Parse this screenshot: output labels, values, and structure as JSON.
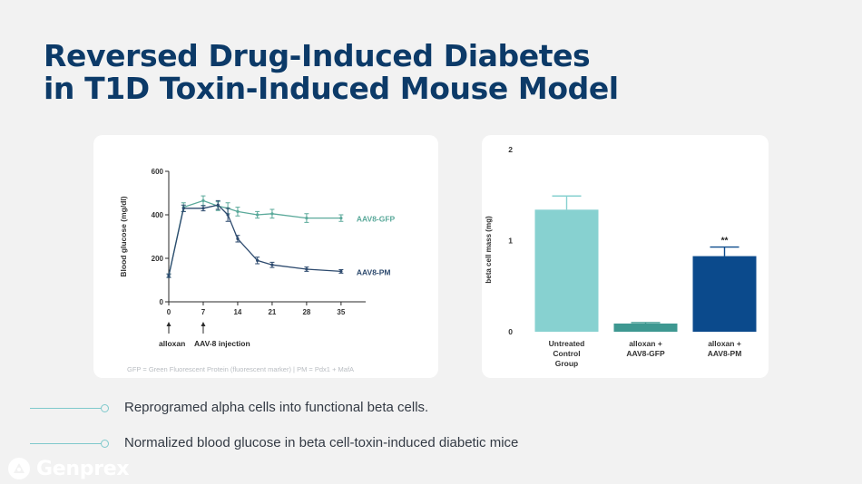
{
  "slide": {
    "title_line1": "Reversed Drug-Induced Diabetes",
    "title_line2": "in T1D Toxin-Induced Mouse Model",
    "footnote": "GFP = Green Fluorescent Protein (fluorescent marker) | PM = Pdx1 + MafA",
    "bullets": [
      "Reprogramed alpha cells into functional beta cells.",
      "Normalized blood glucose in beta cell-toxin-induced diabetic mice"
    ],
    "brand": "Genprex"
  },
  "colors": {
    "title": "#0c3a68",
    "gfp_line": "#5aa99a",
    "pm_line": "#2d4a6e",
    "bar_control": "#87d1d0",
    "bar_gfp": "#3e9891",
    "bar_pm": "#0b4a8c"
  },
  "chart_data": [
    {
      "type": "line",
      "title": "",
      "xlabel": "",
      "ylabel": "Blood glucose (mg/dl)",
      "xlim": [
        0,
        40
      ],
      "ylim": [
        0,
        600
      ],
      "xticks": [
        0,
        7,
        14,
        21,
        28,
        35
      ],
      "yticks": [
        0,
        200,
        400,
        600
      ],
      "series": [
        {
          "name": "AAV8-GFP",
          "color": "#5aa99a",
          "x": [
            0,
            3,
            7,
            10,
            12,
            14,
            18,
            21,
            28,
            35
          ],
          "y": [
            120,
            435,
            465,
            440,
            430,
            415,
            400,
            405,
            385,
            385
          ],
          "err": [
            8,
            20,
            22,
            20,
            25,
            20,
            15,
            20,
            20,
            15
          ]
        },
        {
          "name": "AAV8-PM",
          "color": "#2d4a6e",
          "x": [
            0,
            3,
            7,
            10,
            12,
            14,
            18,
            21,
            28,
            35
          ],
          "y": [
            120,
            430,
            430,
            445,
            400,
            290,
            190,
            170,
            150,
            140
          ],
          "err": [
            8,
            15,
            12,
            20,
            30,
            15,
            15,
            12,
            10,
            8
          ]
        }
      ],
      "annotations": [
        {
          "label": "alloxan",
          "x": 0
        },
        {
          "label": "AAV-8 injection",
          "x": 7
        }
      ]
    },
    {
      "type": "bar",
      "title": "",
      "xlabel": "",
      "ylabel": "beta cell mass (mg)",
      "ylim": [
        0,
        2
      ],
      "yticks": [
        0,
        1,
        2
      ],
      "categories": [
        [
          "Untreated",
          "Control",
          "Group"
        ],
        [
          "alloxan +",
          "AAV8-GFP"
        ],
        [
          "alloxan +",
          "AAV8-PM"
        ]
      ],
      "values": [
        1.34,
        0.09,
        0.83
      ],
      "errors": [
        0.15,
        0.01,
        0.1
      ],
      "colors": [
        "#87d1d0",
        "#3e9891",
        "#0b4a8c"
      ],
      "significance": [
        "",
        "",
        "**"
      ]
    }
  ]
}
